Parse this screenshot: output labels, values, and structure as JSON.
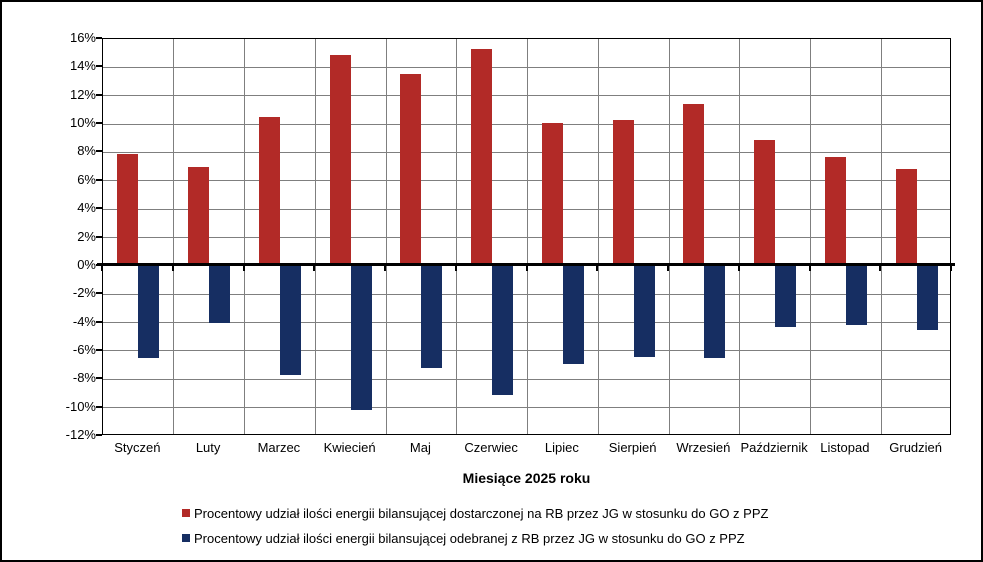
{
  "frame": {
    "background": "#FFFFFF",
    "border_color": "#000000",
    "gridline_color": "#7F7F7F",
    "zero_line_color": "#000000"
  },
  "chart_data": {
    "type": "bar",
    "title": "",
    "xlabel": "Miesiące 2025 roku",
    "ylabel": "",
    "ylim": [
      -12,
      16
    ],
    "ytick_step": 2,
    "ytick_labels": [
      "16%",
      "14%",
      "12%",
      "10%",
      "8%",
      "6%",
      "4%",
      "2%",
      "0%",
      "-2%",
      "-4%",
      "-6%",
      "-8%",
      "-10%",
      "-12%"
    ],
    "grid": true,
    "legend_position": "bottom-left",
    "categories": [
      "Styczeń",
      "Luty",
      "Marzec",
      "Kwiecień",
      "Maj",
      "Czerwiec",
      "Lipiec",
      "Sierpień",
      "Wrzesień",
      "Październik",
      "Listopad",
      "Grudzień"
    ],
    "series": [
      {
        "key": "dostarczona",
        "name": "Procentowy udział ilości energii bilansującej dostarczonej na RB przez JG w stosunku do GO z PPZ",
        "color": "#B22A27",
        "values": [
          7.9,
          7.0,
          10.5,
          14.9,
          13.5,
          15.3,
          10.1,
          10.3,
          11.4,
          8.9,
          7.7,
          6.8
        ]
      },
      {
        "key": "odebrana",
        "name": "Procentowy udział ilości energii bilansującej odebranej z RB przez JG w stosunku do GO z PPZ",
        "color": "#162E62",
        "values": [
          -6.5,
          -4.0,
          -7.7,
          -10.2,
          -7.2,
          -9.1,
          -6.9,
          -6.4,
          -6.5,
          -4.3,
          -4.2,
          -4.5
        ]
      }
    ]
  }
}
